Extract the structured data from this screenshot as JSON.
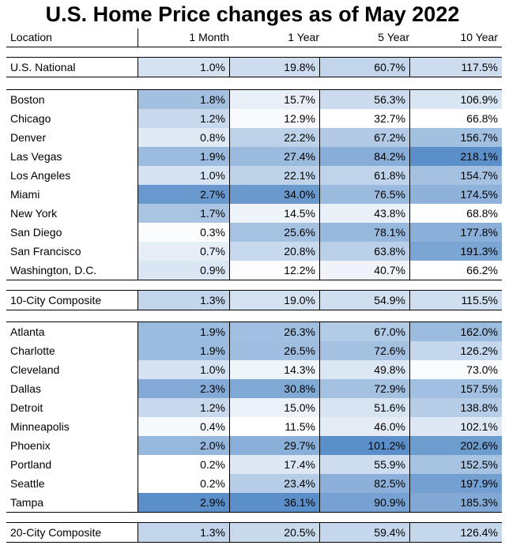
{
  "title": "U.S. Home Price changes as of May 2022",
  "columns": [
    "Location",
    "1 Month",
    "1 Year",
    "5 Year",
    "10 Year"
  ],
  "chart_data": {
    "type": "table",
    "title": "U.S. Home Price changes as of May 2022",
    "columns": [
      "Location",
      "1 Month",
      "1 Year",
      "5 Year",
      "10 Year"
    ],
    "groups": [
      {
        "rows": [
          {
            "location": "U.S. National",
            "values": [
              "1.0%",
              "19.8%",
              "60.7%",
              "117.5%"
            ]
          }
        ]
      },
      {
        "rows": [
          {
            "location": "Boston",
            "values": [
              "1.8%",
              "15.7%",
              "56.3%",
              "106.9%"
            ]
          },
          {
            "location": "Chicago",
            "values": [
              "1.2%",
              "12.9%",
              "32.7%",
              "66.8%"
            ]
          },
          {
            "location": "Denver",
            "values": [
              "0.8%",
              "22.2%",
              "67.2%",
              "156.7%"
            ]
          },
          {
            "location": "Las Vegas",
            "values": [
              "1.9%",
              "27.4%",
              "84.2%",
              "218.1%"
            ]
          },
          {
            "location": "Los Angeles",
            "values": [
              "1.0%",
              "22.1%",
              "61.8%",
              "154.7%"
            ]
          },
          {
            "location": "Miami",
            "values": [
              "2.7%",
              "34.0%",
              "76.5%",
              "174.5%"
            ]
          },
          {
            "location": "New York",
            "values": [
              "1.7%",
              "14.5%",
              "43.8%",
              "68.8%"
            ]
          },
          {
            "location": "San Diego",
            "values": [
              "0.3%",
              "25.6%",
              "78.1%",
              "177.8%"
            ]
          },
          {
            "location": "San Francisco",
            "values": [
              "0.7%",
              "20.8%",
              "63.8%",
              "191.3%"
            ]
          },
          {
            "location": "Washington, D.C.",
            "values": [
              "0.9%",
              "12.2%",
              "40.7%",
              "66.2%"
            ]
          }
        ]
      },
      {
        "rows": [
          {
            "location": "10-City Composite",
            "values": [
              "1.3%",
              "19.0%",
              "54.9%",
              "115.5%"
            ]
          }
        ]
      },
      {
        "rows": [
          {
            "location": "Atlanta",
            "values": [
              "1.9%",
              "26.3%",
              "67.0%",
              "162.0%"
            ]
          },
          {
            "location": "Charlotte",
            "values": [
              "1.9%",
              "26.5%",
              "72.6%",
              "126.2%"
            ]
          },
          {
            "location": "Cleveland",
            "values": [
              "1.0%",
              "14.3%",
              "49.8%",
              "73.0%"
            ]
          },
          {
            "location": "Dallas",
            "values": [
              "2.3%",
              "30.8%",
              "72.9%",
              "157.5%"
            ]
          },
          {
            "location": "Detroit",
            "values": [
              "1.2%",
              "15.0%",
              "51.6%",
              "138.8%"
            ]
          },
          {
            "location": "Minneapolis",
            "values": [
              "0.4%",
              "11.5%",
              "46.0%",
              "102.1%"
            ]
          },
          {
            "location": "Phoenix",
            "values": [
              "2.0%",
              "29.7%",
              "101.2%",
              "202.6%"
            ]
          },
          {
            "location": "Portland",
            "values": [
              "0.2%",
              "17.4%",
              "55.9%",
              "152.5%"
            ]
          },
          {
            "location": "Seattle",
            "values": [
              "0.2%",
              "23.4%",
              "82.5%",
              "197.9%"
            ]
          },
          {
            "location": "Tampa",
            "values": [
              "2.9%",
              "36.1%",
              "90.9%",
              "185.3%"
            ]
          }
        ]
      },
      {
        "rows": [
          {
            "location": "20-City Composite",
            "values": [
              "1.3%",
              "20.5%",
              "59.4%",
              "126.4%"
            ]
          }
        ]
      }
    ],
    "color_scale": {
      "low": "#ffffff",
      "high": "#5b8fc9"
    }
  }
}
